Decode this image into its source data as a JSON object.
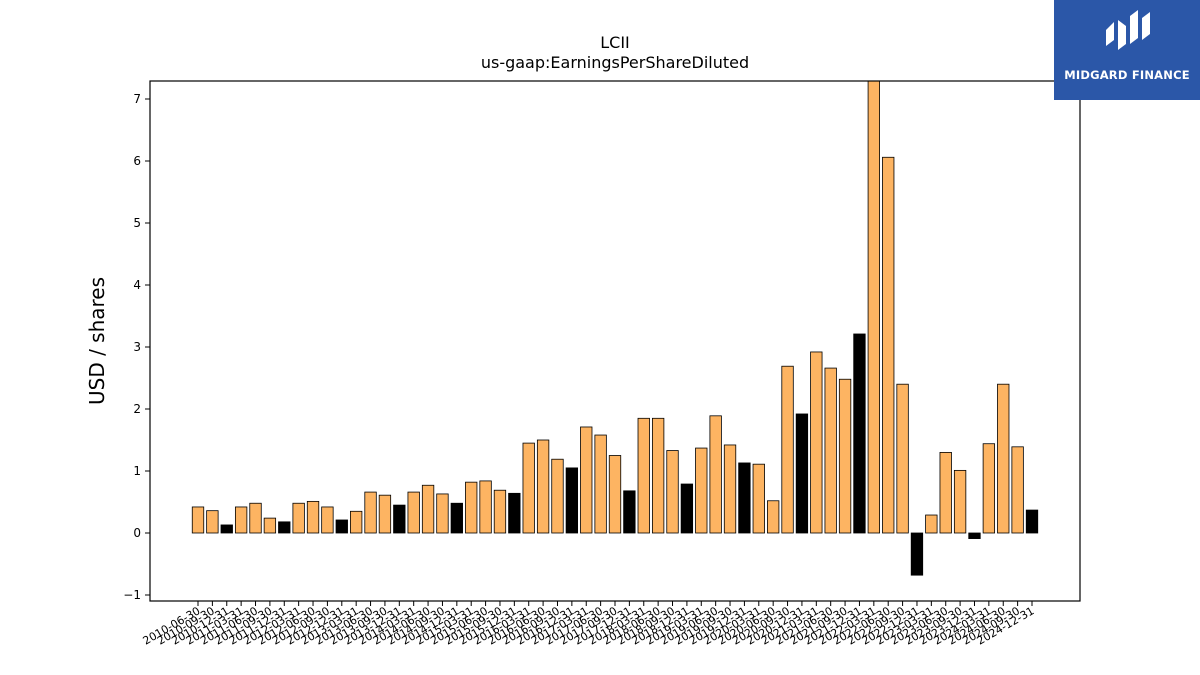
{
  "chart_data": {
    "type": "bar",
    "title": "LCII",
    "subtitle": "us-gaap:EarningsPerShareDiluted",
    "ylabel": "USD / shares",
    "xlabel": "",
    "ylim": [
      -1.1,
      7.3
    ],
    "yticks": [
      -1,
      0,
      1,
      2,
      3,
      4,
      5,
      6,
      7
    ],
    "grid": false,
    "colors": {
      "default": "#fdb462",
      "highlight": "#000000",
      "edge": "#000000"
    },
    "categories": [
      "2010-06-30",
      "2010-09-30",
      "2010-12-31",
      "2011-03-31",
      "2011-06-30",
      "2011-09-30",
      "2011-12-31",
      "2012-03-31",
      "2012-06-30",
      "2012-09-30",
      "2012-12-31",
      "2013-03-31",
      "2013-06-30",
      "2013-09-30",
      "2013-12-31",
      "2014-03-31",
      "2014-06-30",
      "2014-09-30",
      "2014-12-31",
      "2015-03-31",
      "2015-06-30",
      "2015-09-30",
      "2015-12-31",
      "2016-03-31",
      "2016-06-30",
      "2016-09-30",
      "2016-12-31",
      "2017-03-31",
      "2017-06-30",
      "2017-09-30",
      "2017-12-31",
      "2018-03-31",
      "2018-06-30",
      "2018-09-30",
      "2018-12-31",
      "2019-03-31",
      "2019-06-30",
      "2019-09-30",
      "2019-12-31",
      "2020-03-31",
      "2020-06-30",
      "2020-09-30",
      "2020-12-31",
      "2021-03-31",
      "2021-06-30",
      "2021-09-30",
      "2021-12-31",
      "2022-03-31",
      "2022-06-30",
      "2022-09-30",
      "2022-12-31",
      "2023-03-31",
      "2023-06-30",
      "2023-09-30",
      "2023-12-31",
      "2024-03-31",
      "2024-06-30",
      "2024-09-30",
      "2024-12-31"
    ],
    "values": [
      0.42,
      0.36,
      0.13,
      0.42,
      0.48,
      0.24,
      0.18,
      0.48,
      0.51,
      0.42,
      0.21,
      0.35,
      0.66,
      0.61,
      0.45,
      0.66,
      0.77,
      0.63,
      0.48,
      0.82,
      0.84,
      0.69,
      0.64,
      1.45,
      1.5,
      1.19,
      1.05,
      1.71,
      1.58,
      1.25,
      0.68,
      1.85,
      1.85,
      1.33,
      0.79,
      1.37,
      1.89,
      1.42,
      1.13,
      1.11,
      0.52,
      2.69,
      1.92,
      2.92,
      2.66,
      2.48,
      3.21,
      7.3,
      6.06,
      2.4,
      -0.68,
      0.29,
      1.3,
      1.01,
      -0.09,
      1.44,
      2.4,
      1.39,
      0.37
    ],
    "highlighted": [
      "2010-12-31",
      "2011-12-31",
      "2012-12-31",
      "2013-12-31",
      "2014-12-31",
      "2015-12-31",
      "2016-12-31",
      "2017-12-31",
      "2018-12-31",
      "2019-12-31",
      "2020-12-31",
      "2021-12-31",
      "2022-12-31",
      "2023-12-31",
      "2024-12-31"
    ]
  },
  "branding": {
    "logo_text": "MIDGARD FINANCE",
    "logo_color": "#2b57a8"
  }
}
